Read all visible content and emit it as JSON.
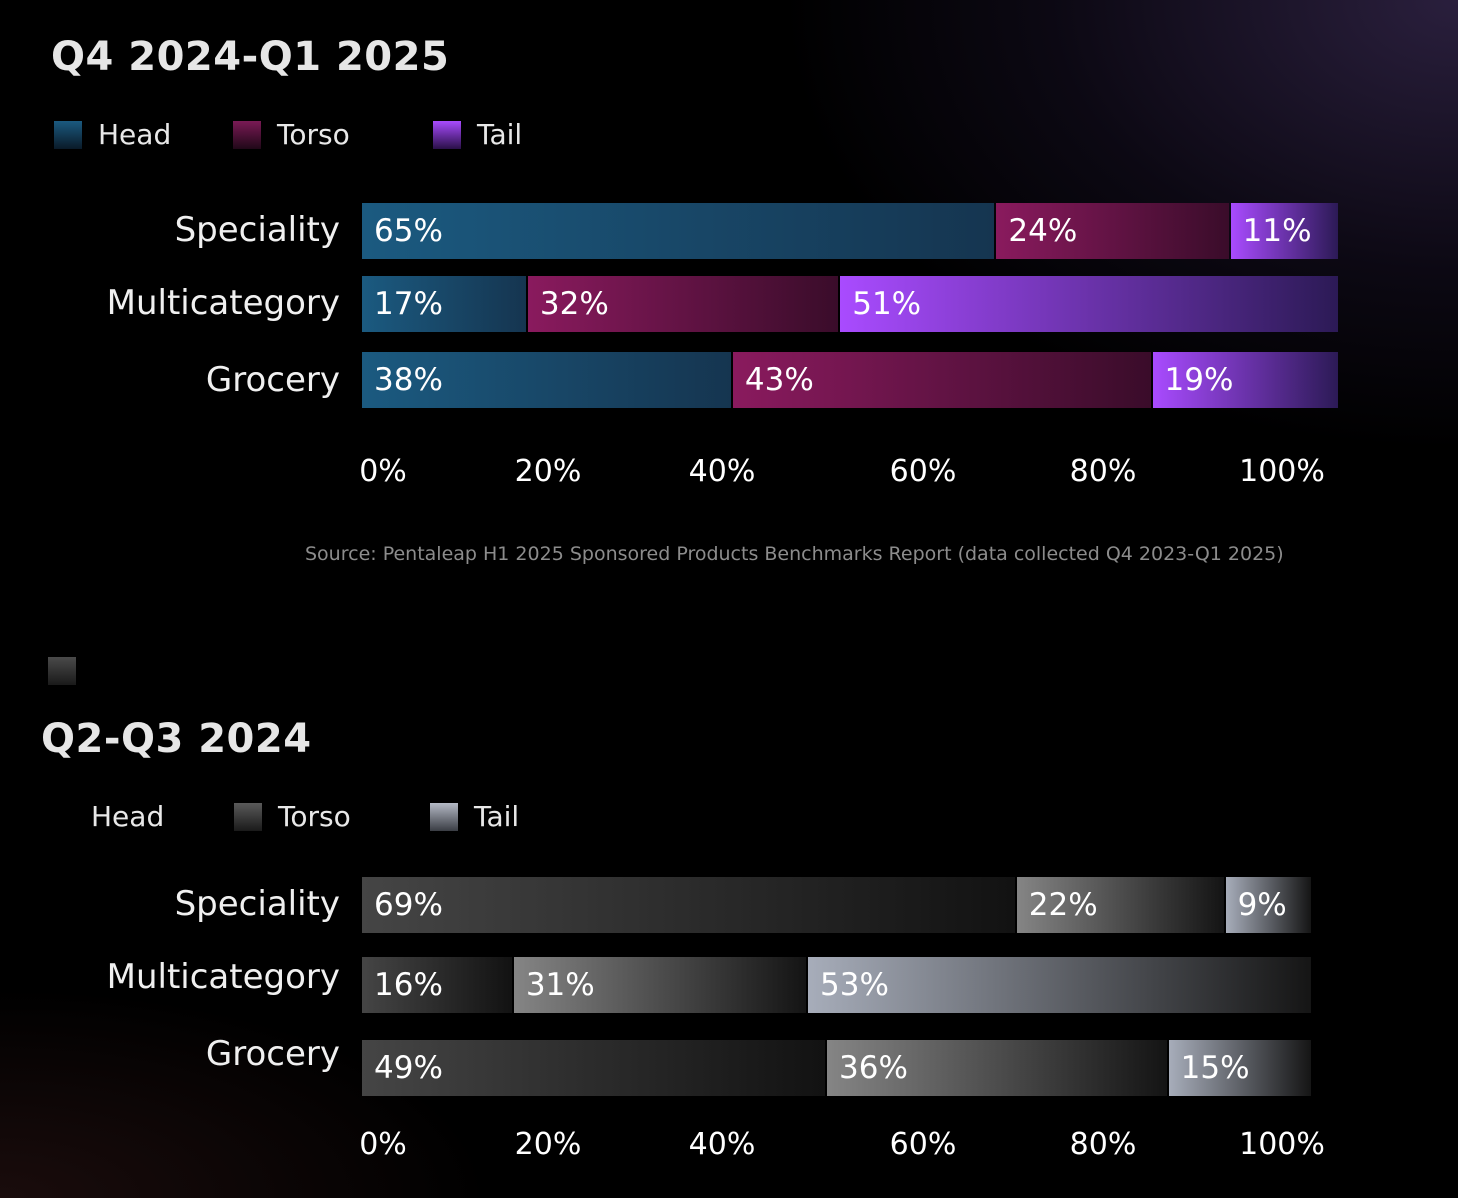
{
  "colors": {
    "head": "#1b5a80",
    "torso": "#8a1a5e",
    "tail": "#a94bff",
    "gray_head": "#444444",
    "gray_torso": "#7a7a7a",
    "gray_tail": "#a7adba"
  },
  "chart_data": [
    {
      "type": "bar",
      "orientation": "horizontal-stacked",
      "title": "Q4 2024-Q1 2025",
      "legend": [
        "Head",
        "Torso",
        "Tail"
      ],
      "categories": [
        "Speciality",
        "Multicategory",
        "Grocery"
      ],
      "series": [
        {
          "name": "Head",
          "values": [
            65,
            17,
            38
          ]
        },
        {
          "name": "Torso",
          "values": [
            24,
            32,
            43
          ]
        },
        {
          "name": "Tail",
          "values": [
            11,
            51,
            19
          ]
        }
      ],
      "ticks": [
        "0%",
        "20%",
        "40%",
        "60%",
        "80%",
        "100%"
      ],
      "xlim": [
        0,
        100
      ],
      "legend_position": "top-left",
      "source": "Source: Pentaleap H1 2025 Sponsored Products Benchmarks Report (data collected Q4 2023-Q1 2025)"
    },
    {
      "type": "bar",
      "orientation": "horizontal-stacked",
      "title": "Q2-Q3 2024",
      "legend": [
        "Head",
        "Torso",
        "Tail"
      ],
      "categories": [
        "Speciality",
        "Multicategory",
        "Grocery"
      ],
      "series": [
        {
          "name": "Head",
          "values": [
            69,
            16,
            49
          ]
        },
        {
          "name": "Torso",
          "values": [
            22,
            31,
            36
          ]
        },
        {
          "name": "Tail",
          "values": [
            9,
            53,
            15
          ]
        }
      ],
      "ticks": [
        "0%",
        "20%",
        "40%",
        "60%",
        "80%",
        "100%"
      ],
      "xlim": [
        0,
        100
      ],
      "legend_position": "top-left"
    }
  ]
}
